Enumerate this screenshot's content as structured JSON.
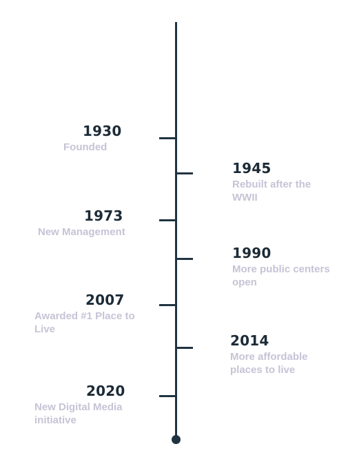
{
  "timeline": {
    "events": [
      {
        "year": "1930",
        "description": "Founded"
      },
      {
        "year": "1945",
        "description": "Rebuilt after the WWII"
      },
      {
        "year": "1973",
        "description": "New Management"
      },
      {
        "year": "1990",
        "description": "More public centers open"
      },
      {
        "year": "2007",
        "description": "Awarded #1 Place to Live"
      },
      {
        "year": "2014",
        "description": "More affordable places to live"
      },
      {
        "year": "2020",
        "description": "New Digital Media initiative"
      }
    ]
  },
  "colors": {
    "line": "#1f3340",
    "year_text": "#1c2b37",
    "description_text": "#c7c3d6"
  }
}
